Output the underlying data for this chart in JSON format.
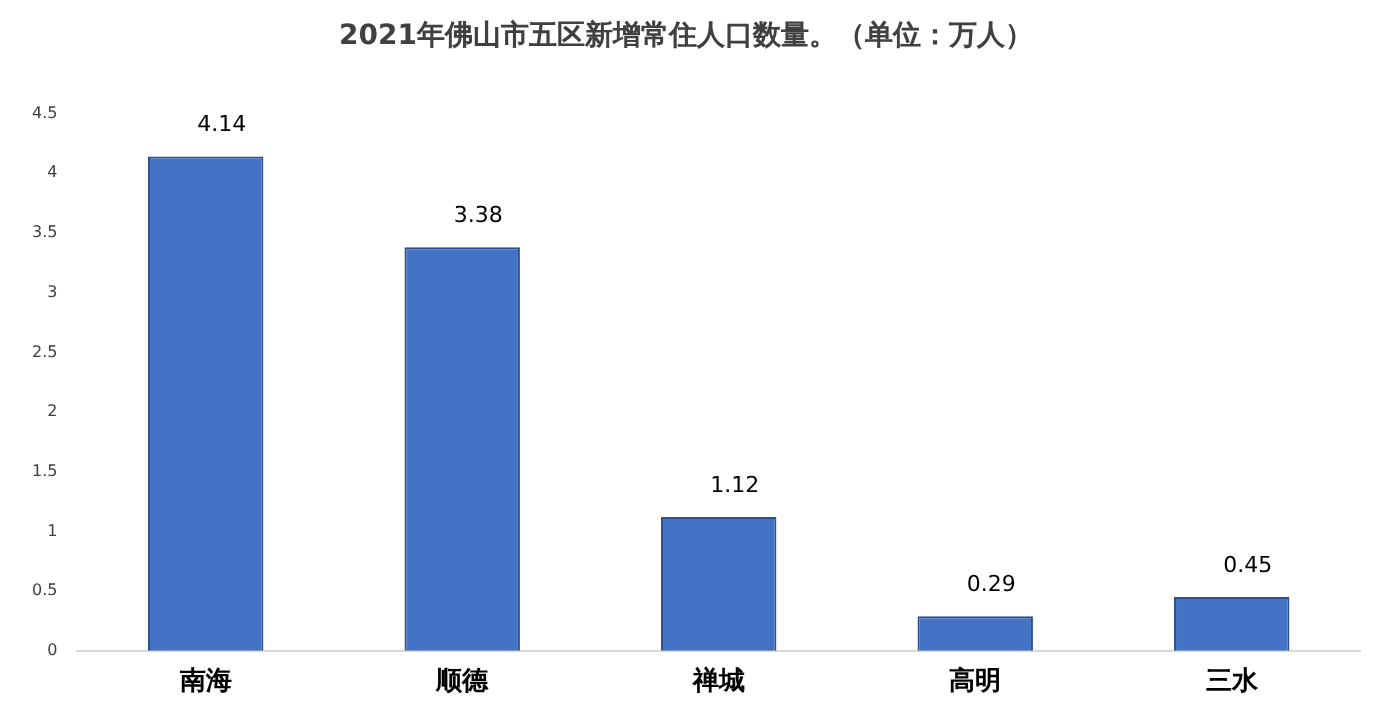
{
  "chart_data": {
    "type": "bar",
    "title": "2021年佛山市五区新增常住人口数量。（单位：万人）",
    "categories": [
      "南海",
      "顺德",
      "禅城",
      "高明",
      "三水"
    ],
    "values": [
      4.14,
      3.38,
      1.12,
      0.29,
      0.45
    ],
    "color": "#4472c4",
    "ylim": [
      0,
      4.5
    ],
    "yticks": [
      0,
      0.5,
      1,
      1.5,
      2,
      2.5,
      3,
      3.5,
      4,
      4.5
    ],
    "data_labels": true,
    "grid": false,
    "legend": false
  }
}
